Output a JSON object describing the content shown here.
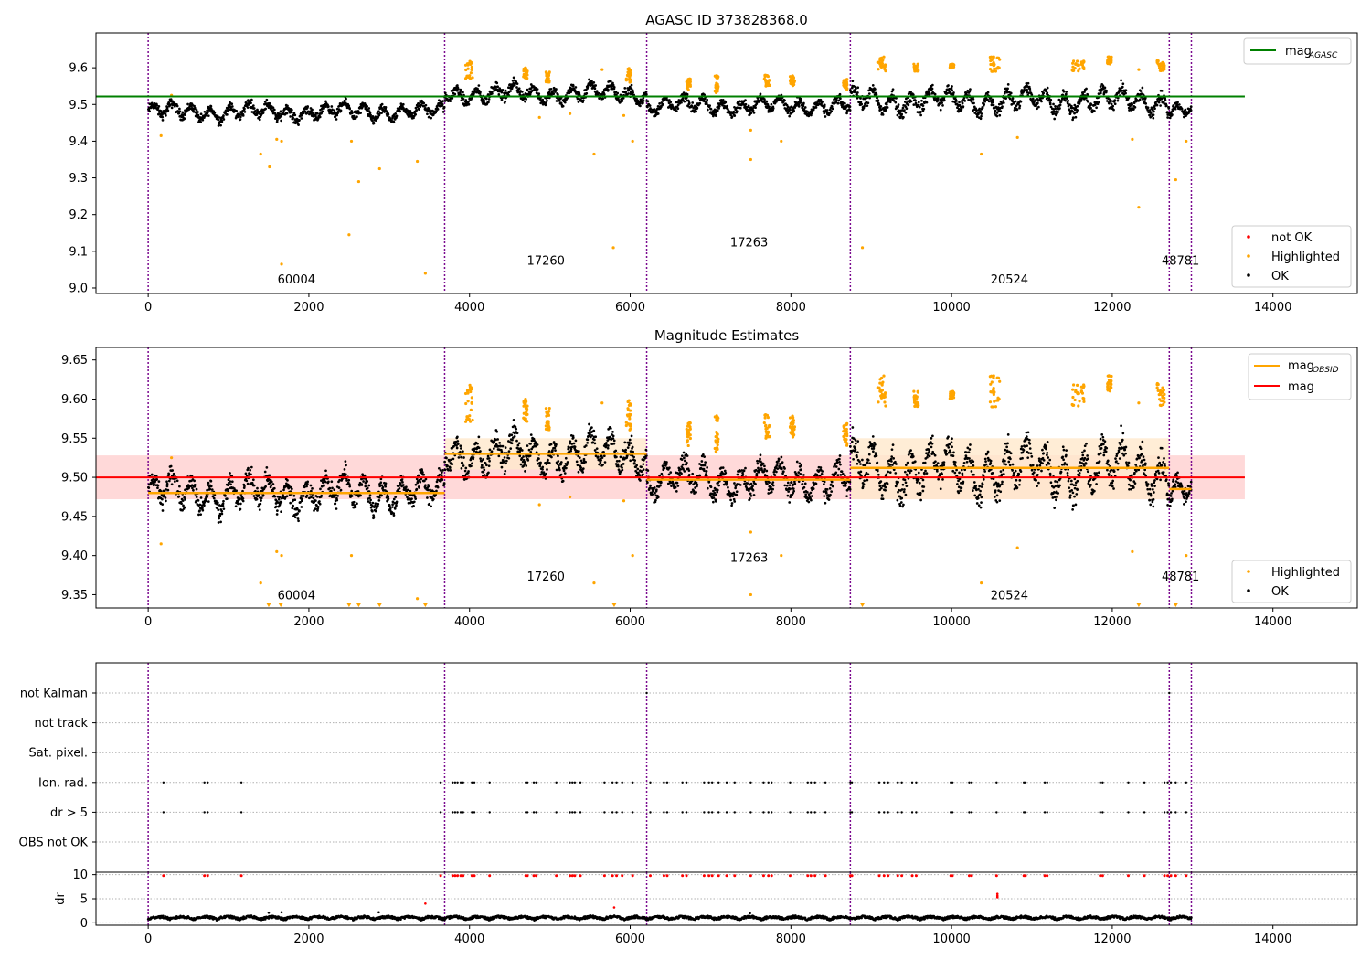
{
  "figure": {
    "x_ticks": [
      0,
      2000,
      4000,
      6000,
      8000,
      10000,
      12000,
      14000
    ],
    "x_range": [
      -650,
      15050
    ],
    "obsid_boundaries": [
      0,
      3690,
      6205,
      8740,
      12710,
      12985
    ],
    "colors": {
      "boundary": "#7b0a8f",
      "ok": "#000000",
      "highlighted": "#ffa500",
      "not_ok": "#ff0000",
      "mag_agasc": "#008000",
      "mag": "#ff0000",
      "mag_obsid": "#ffa500",
      "band_mag": "#ffcccc",
      "band_obsid": "#ffe8cc"
    }
  },
  "chart_data": [
    {
      "type": "scatter",
      "title": "AGASC ID 373828368.0",
      "ylim": [
        8.985,
        9.695
      ],
      "y_ticks": [
        9.0,
        9.1,
        9.2,
        9.3,
        9.4,
        9.5,
        9.6
      ],
      "mag_agasc": 9.522,
      "mag_agasc_x_range": [
        -650,
        13650
      ],
      "obsid_labels": [
        {
          "text": "60004",
          "x": 1845,
          "y": 9.013
        },
        {
          "text": "17260",
          "x": 4950,
          "y": 9.063
        },
        {
          "text": "17263",
          "x": 7480,
          "y": 9.113
        },
        {
          "text": "20524",
          "x": 10720,
          "y": 9.013
        },
        {
          "text": "48781",
          "x": 12850,
          "y": 9.063
        }
      ],
      "legend_upper": [
        {
          "label": "mag",
          "sub": "AGASC",
          "color": "#008000"
        }
      ],
      "legend_lower": [
        {
          "label": "not OK",
          "color": "#ff0000"
        },
        {
          "label": "Highlighted",
          "color": "#ffa500"
        },
        {
          "label": "OK",
          "color": "#000000"
        }
      ],
      "segments": [
        {
          "x": [
            0,
            3690
          ],
          "base": 9.48,
          "spread": 0.035
        },
        {
          "x": [
            3690,
            6205
          ],
          "base": 9.53,
          "spread": 0.04
        },
        {
          "x": [
            6205,
            8740
          ],
          "base": 9.497,
          "spread": 0.035
        },
        {
          "x": [
            8740,
            12710
          ],
          "base": 9.51,
          "spread": 0.05
        },
        {
          "x": [
            12710,
            12985
          ],
          "base": 9.485,
          "spread": 0.03
        }
      ],
      "highlight_clusters": [
        {
          "x": [
            3940,
            4040
          ],
          "y": [
            9.57,
            9.62
          ]
        },
        {
          "x": [
            4670,
            4720
          ],
          "y": [
            9.57,
            9.6
          ]
        },
        {
          "x": [
            4950,
            5000
          ],
          "y": [
            9.56,
            9.59
          ]
        },
        {
          "x": [
            5950,
            6020
          ],
          "y": [
            9.56,
            9.6
          ]
        },
        {
          "x": [
            6700,
            6750
          ],
          "y": [
            9.54,
            9.57
          ]
        },
        {
          "x": [
            7050,
            7100
          ],
          "y": [
            9.53,
            9.58
          ]
        },
        {
          "x": [
            7670,
            7740
          ],
          "y": [
            9.55,
            9.58
          ]
        },
        {
          "x": [
            7990,
            8050
          ],
          "y": [
            9.55,
            9.58
          ]
        },
        {
          "x": [
            8650,
            8700
          ],
          "y": [
            9.54,
            9.57
          ]
        },
        {
          "x": [
            9080,
            9180
          ],
          "y": [
            9.59,
            9.63
          ]
        },
        {
          "x": [
            9530,
            9590
          ],
          "y": [
            9.59,
            9.61
          ]
        },
        {
          "x": [
            9980,
            10030
          ],
          "y": [
            9.6,
            9.61
          ]
        },
        {
          "x": [
            10480,
            10600
          ],
          "y": [
            9.59,
            9.63
          ]
        },
        {
          "x": [
            11500,
            11650
          ],
          "y": [
            9.59,
            9.62
          ]
        },
        {
          "x": [
            11940,
            11990
          ],
          "y": [
            9.61,
            9.63
          ]
        },
        {
          "x": [
            12550,
            12650
          ],
          "y": [
            9.59,
            9.62
          ]
        }
      ],
      "highlight_outliers": [
        {
          "x": 160,
          "y": 9.415
        },
        {
          "x": 290,
          "y": 9.525
        },
        {
          "x": 1400,
          "y": 9.365
        },
        {
          "x": 1510,
          "y": 9.33
        },
        {
          "x": 1600,
          "y": 9.405
        },
        {
          "x": 1660,
          "y": 9.4
        },
        {
          "x": 1660,
          "y": 9.065
        },
        {
          "x": 2500,
          "y": 9.145
        },
        {
          "x": 2530,
          "y": 9.4
        },
        {
          "x": 2620,
          "y": 9.29
        },
        {
          "x": 2880,
          "y": 9.325
        },
        {
          "x": 3350,
          "y": 9.345
        },
        {
          "x": 3450,
          "y": 9.04
        },
        {
          "x": 4870,
          "y": 9.465
        },
        {
          "x": 5250,
          "y": 9.475
        },
        {
          "x": 5550,
          "y": 9.365
        },
        {
          "x": 5650,
          "y": 9.595
        },
        {
          "x": 5790,
          "y": 9.11
        },
        {
          "x": 5920,
          "y": 9.47
        },
        {
          "x": 6030,
          "y": 9.4
        },
        {
          "x": 7500,
          "y": 9.35
        },
        {
          "x": 7500,
          "y": 9.43
        },
        {
          "x": 7880,
          "y": 9.4
        },
        {
          "x": 8890,
          "y": 9.11
        },
        {
          "x": 10370,
          "y": 9.365
        },
        {
          "x": 10820,
          "y": 9.41
        },
        {
          "x": 12250,
          "y": 9.405
        },
        {
          "x": 12330,
          "y": 9.22
        },
        {
          "x": 12330,
          "y": 9.595
        },
        {
          "x": 12790,
          "y": 9.295
        },
        {
          "x": 12920,
          "y": 9.4
        }
      ]
    },
    {
      "type": "scatter",
      "title": "Magnitude Estimates",
      "ylim": [
        9.333,
        9.666
      ],
      "y_ticks": [
        9.35,
        9.4,
        9.45,
        9.5,
        9.55,
        9.6,
        9.65
      ],
      "mag": 9.5,
      "mag_band": [
        9.472,
        9.528
      ],
      "mag_x_range": [
        -650,
        13650
      ],
      "mag_obsid": [
        {
          "x": [
            0,
            3690
          ],
          "value": 9.48
        },
        {
          "x": [
            3690,
            6205
          ],
          "value": 9.53
        },
        {
          "x": [
            6205,
            8740
          ],
          "value": 9.497
        },
        {
          "x": [
            8740,
            12710
          ],
          "value": 9.512
        },
        {
          "x": [
            12710,
            12985
          ],
          "value": 9.485
        }
      ],
      "mag_obsid_bands": [
        {
          "x": [
            3690,
            6205
          ],
          "range": [
            9.51,
            9.55
          ]
        },
        {
          "x": [
            8740,
            12710
          ],
          "range": [
            9.472,
            9.55
          ]
        }
      ],
      "obsid_labels": [
        {
          "text": "60004",
          "x": 1845,
          "y": 9.344
        },
        {
          "text": "17260",
          "x": 4950,
          "y": 9.368
        },
        {
          "text": "17263",
          "x": 7480,
          "y": 9.392
        },
        {
          "text": "20524",
          "x": 10720,
          "y": 9.344
        },
        {
          "text": "48781",
          "x": 12850,
          "y": 9.368
        }
      ],
      "legend_upper": [
        {
          "label": "mag",
          "sub": "OBSID",
          "color": "#ffa500"
        },
        {
          "label": "mag",
          "sub": "",
          "color": "#ff0000"
        }
      ],
      "legend_lower": [
        {
          "label": "Highlighted",
          "color": "#ffa500"
        },
        {
          "label": "OK",
          "color": "#000000"
        }
      ],
      "below_range_markers": [
        1500,
        1650,
        2500,
        2620,
        2880,
        3450,
        5800,
        8890,
        12330,
        12790
      ]
    },
    {
      "type": "scatter",
      "categories": [
        "not Kalman",
        "not track",
        "Sat. pixel.",
        "Ion. rad.",
        "dr > 5",
        "OBS not OK"
      ],
      "flag_times": [
        190,
        700,
        740,
        1160,
        3640,
        3790,
        3820,
        3850,
        3890,
        3920,
        4030,
        4060,
        4250,
        4700,
        4720,
        4800,
        4830,
        5080,
        5250,
        5280,
        5310,
        5380,
        5680,
        5780,
        5830,
        5900,
        6030,
        6250,
        6420,
        6460,
        6650,
        6700,
        6920,
        6980,
        7020,
        7100,
        7200,
        7300,
        7500,
        7660,
        7720,
        7760,
        7990,
        8210,
        8250,
        8300,
        8430,
        8740,
        8760,
        9100,
        9160,
        9210,
        9330,
        9380,
        9510,
        9560,
        9990,
        10010,
        10220,
        10250,
        10560,
        10900,
        10920,
        11160,
        11190,
        11850,
        11880,
        12200,
        12400,
        12650,
        12690,
        12730,
        12790,
        12920
      ],
      "not_kalman_times": [
        6205,
        12710
      ]
    },
    {
      "type": "scatter",
      "ylabel": "dr",
      "ylim": [
        -0.5,
        10.5
      ],
      "y_ticks": [
        0,
        5,
        10
      ],
      "baseline": 0.5,
      "extra_red": [
        {
          "x": 10570,
          "y": 6.0
        },
        {
          "x": 10570,
          "y": 5.6
        },
        {
          "x": 10570,
          "y": 5.3
        },
        {
          "x": 3450,
          "y": 4.0
        },
        {
          "x": 5800,
          "y": 3.2
        }
      ],
      "extra_black": [
        {
          "x": 1500,
          "y": 2.1
        },
        {
          "x": 1660,
          "y": 2.2
        },
        {
          "x": 2870,
          "y": 2.2
        },
        {
          "x": 7490,
          "y": 2.0
        }
      ]
    }
  ]
}
